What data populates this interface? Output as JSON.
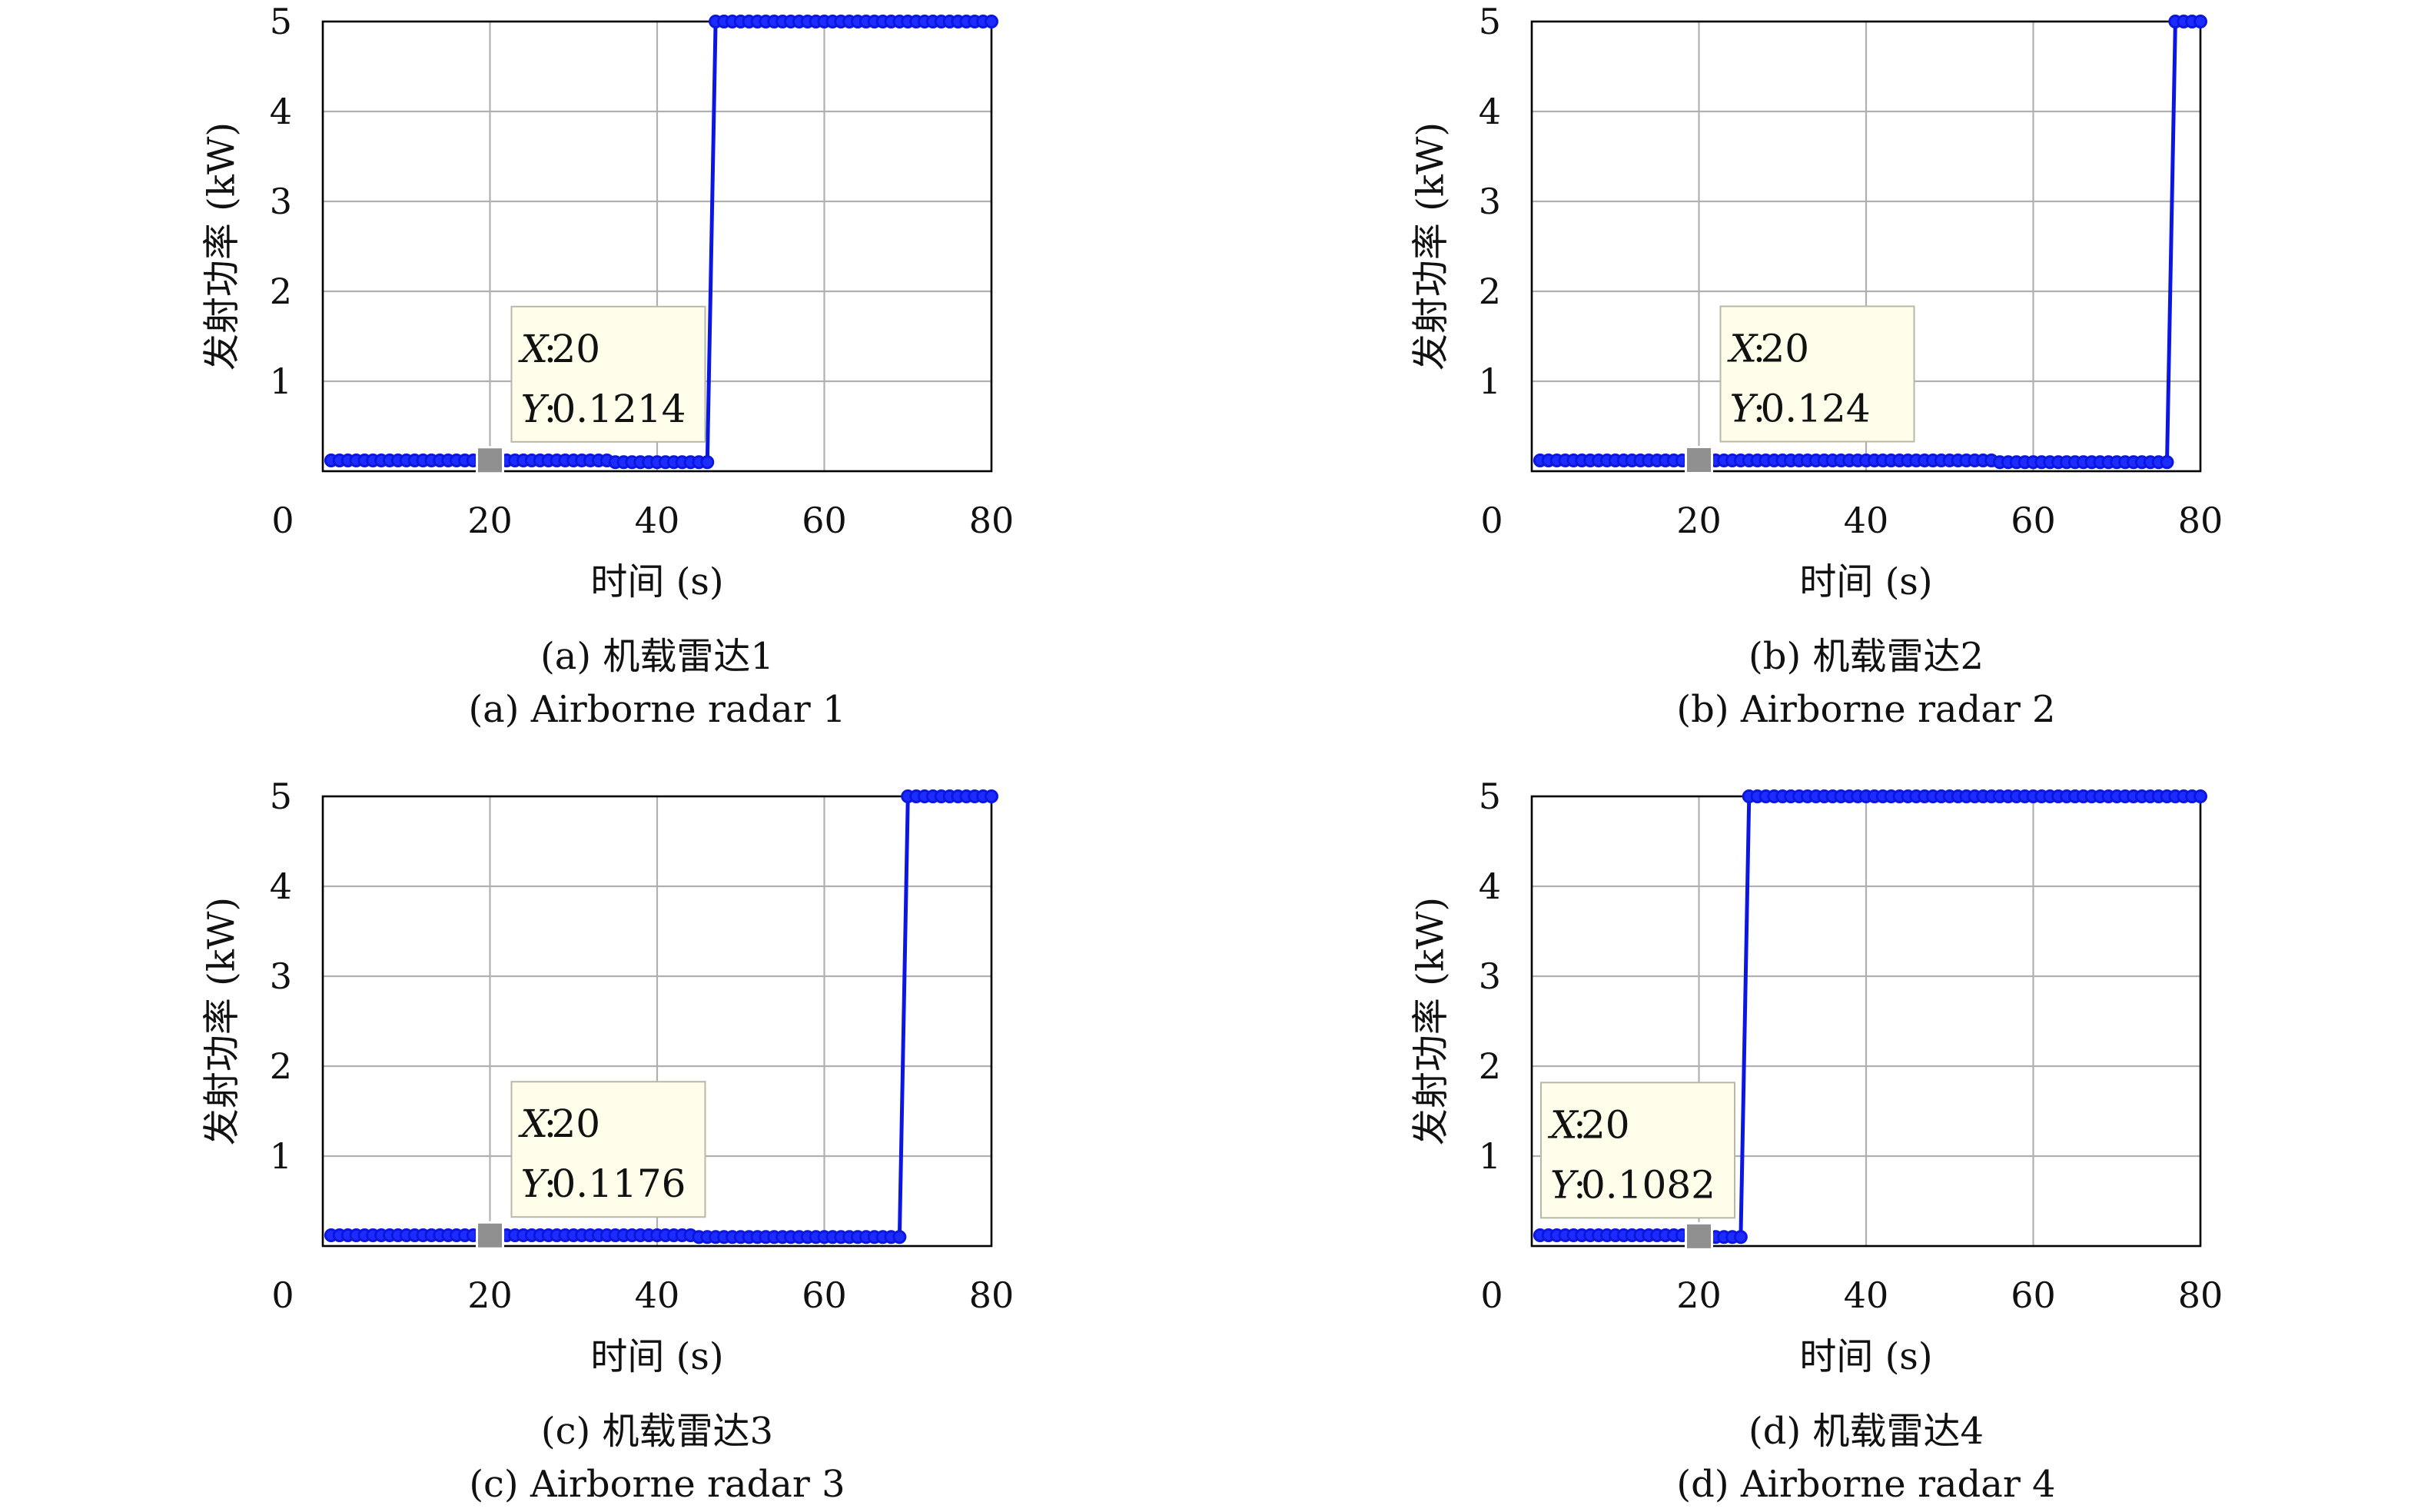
{
  "colors": {
    "series": "#0b17e0",
    "marker_fill": "#1c2cff",
    "grid": "#b0b0b0",
    "axes": "#000000",
    "datatip_fill": "#fefeea",
    "datatip_border": "#b8b8a6",
    "datatip_marker": "#909090"
  },
  "chart_data": [
    {
      "type": "line",
      "panel": "a",
      "caption_cn": "(a) 机载雷达1",
      "caption_en": "(a) Airborne radar 1",
      "xlabel": "时间 (s)",
      "ylabel": "发射功率 (kW)",
      "xlim": [
        0,
        80
      ],
      "ylim": [
        0,
        5
      ],
      "xticks": [
        "0",
        "20",
        "40",
        "60",
        "80"
      ],
      "yticks": [
        "1",
        "2",
        "3",
        "4",
        "5"
      ],
      "grid": true,
      "marker": "circle",
      "series": [
        {
          "x": [
            1,
            2,
            3,
            4,
            5,
            6,
            7,
            8,
            9,
            10,
            11,
            12,
            13,
            14,
            15,
            16,
            17,
            18,
            19,
            20,
            21,
            22,
            23,
            24,
            25,
            26,
            27,
            28,
            29,
            30,
            31,
            32,
            33,
            34,
            35,
            36,
            37,
            38,
            39,
            40,
            41,
            42,
            43,
            44,
            45,
            46,
            47,
            48,
            49,
            50,
            51,
            52,
            53,
            54,
            55,
            56,
            57,
            58,
            59,
            60,
            61,
            62,
            63,
            64,
            65,
            66,
            67,
            68,
            69,
            70,
            71,
            72,
            73,
            74,
            75,
            76,
            77,
            78,
            79,
            80
          ],
          "y": [
            0.12,
            0.12,
            0.12,
            0.12,
            0.12,
            0.12,
            0.12,
            0.12,
            0.12,
            0.12,
            0.12,
            0.12,
            0.12,
            0.12,
            0.12,
            0.12,
            0.12,
            0.12,
            0.12,
            0.1214,
            0.12,
            0.12,
            0.12,
            0.12,
            0.12,
            0.12,
            0.12,
            0.12,
            0.12,
            0.12,
            0.12,
            0.12,
            0.12,
            0.12,
            0.1,
            0.1,
            0.1,
            0.1,
            0.1,
            0.1,
            0.1,
            0.1,
            0.1,
            0.1,
            0.1,
            0.1,
            5,
            5,
            5,
            5,
            5,
            5,
            5,
            5,
            5,
            5,
            5,
            5,
            5,
            5,
            5,
            5,
            5,
            5,
            5,
            5,
            5,
            5,
            5,
            5,
            5,
            5,
            5,
            5,
            5,
            5,
            5,
            5,
            5,
            5
          ]
        }
      ],
      "datatip": {
        "x_key": "X",
        "x_value": "20",
        "y_key": "Y",
        "y_value": "0.1214",
        "at_x": 20,
        "at_y": 0.1214
      }
    },
    {
      "type": "line",
      "panel": "b",
      "caption_cn": "(b) 机载雷达2",
      "caption_en": "(b) Airborne radar 2",
      "xlabel": "时间 (s)",
      "ylabel": "发射功率 (kW)",
      "xlim": [
        0,
        80
      ],
      "ylim": [
        0,
        5
      ],
      "xticks": [
        "0",
        "20",
        "40",
        "60",
        "80"
      ],
      "yticks": [
        "1",
        "2",
        "3",
        "4",
        "5"
      ],
      "grid": true,
      "marker": "circle",
      "series": [
        {
          "x": [
            1,
            2,
            3,
            4,
            5,
            6,
            7,
            8,
            9,
            10,
            11,
            12,
            13,
            14,
            15,
            16,
            17,
            18,
            19,
            20,
            21,
            22,
            23,
            24,
            25,
            26,
            27,
            28,
            29,
            30,
            31,
            32,
            33,
            34,
            35,
            36,
            37,
            38,
            39,
            40,
            41,
            42,
            43,
            44,
            45,
            46,
            47,
            48,
            49,
            50,
            51,
            52,
            53,
            54,
            55,
            56,
            57,
            58,
            59,
            60,
            61,
            62,
            63,
            64,
            65,
            66,
            67,
            68,
            69,
            70,
            71,
            72,
            73,
            74,
            75,
            76,
            77,
            78,
            79,
            80
          ],
          "y": [
            0.12,
            0.12,
            0.12,
            0.12,
            0.12,
            0.12,
            0.12,
            0.12,
            0.12,
            0.12,
            0.12,
            0.12,
            0.12,
            0.12,
            0.12,
            0.12,
            0.12,
            0.12,
            0.12,
            0.124,
            0.12,
            0.12,
            0.12,
            0.12,
            0.12,
            0.12,
            0.12,
            0.12,
            0.12,
            0.12,
            0.12,
            0.12,
            0.12,
            0.12,
            0.12,
            0.12,
            0.12,
            0.12,
            0.12,
            0.12,
            0.12,
            0.12,
            0.12,
            0.12,
            0.12,
            0.12,
            0.12,
            0.12,
            0.12,
            0.12,
            0.12,
            0.12,
            0.12,
            0.12,
            0.12,
            0.1,
            0.1,
            0.1,
            0.1,
            0.1,
            0.1,
            0.1,
            0.1,
            0.1,
            0.1,
            0.1,
            0.1,
            0.1,
            0.1,
            0.1,
            0.1,
            0.1,
            0.1,
            0.1,
            0.1,
            0.1,
            5,
            5,
            5,
            5
          ]
        }
      ],
      "datatip": {
        "x_key": "X",
        "x_value": "20",
        "y_key": "Y",
        "y_value": "0.124",
        "at_x": 20,
        "at_y": 0.124
      }
    },
    {
      "type": "line",
      "panel": "c",
      "caption_cn": "(c) 机载雷达3",
      "caption_en": "(c) Airborne radar 3",
      "xlabel": "时间 (s)",
      "ylabel": "发射功率 (kW)",
      "xlim": [
        0,
        80
      ],
      "ylim": [
        0,
        5
      ],
      "xticks": [
        "0",
        "20",
        "40",
        "60",
        "80"
      ],
      "yticks": [
        "1",
        "2",
        "3",
        "4",
        "5"
      ],
      "grid": true,
      "marker": "circle",
      "series": [
        {
          "x": [
            1,
            2,
            3,
            4,
            5,
            6,
            7,
            8,
            9,
            10,
            11,
            12,
            13,
            14,
            15,
            16,
            17,
            18,
            19,
            20,
            21,
            22,
            23,
            24,
            25,
            26,
            27,
            28,
            29,
            30,
            31,
            32,
            33,
            34,
            35,
            36,
            37,
            38,
            39,
            40,
            41,
            42,
            43,
            44,
            45,
            46,
            47,
            48,
            49,
            50,
            51,
            52,
            53,
            54,
            55,
            56,
            57,
            58,
            59,
            60,
            61,
            62,
            63,
            64,
            65,
            66,
            67,
            68,
            69,
            70,
            71,
            72,
            73,
            74,
            75,
            76,
            77,
            78,
            79,
            80
          ],
          "y": [
            0.12,
            0.12,
            0.12,
            0.12,
            0.12,
            0.12,
            0.12,
            0.12,
            0.12,
            0.12,
            0.12,
            0.12,
            0.12,
            0.12,
            0.12,
            0.12,
            0.12,
            0.12,
            0.12,
            0.1176,
            0.12,
            0.12,
            0.12,
            0.12,
            0.12,
            0.12,
            0.12,
            0.12,
            0.12,
            0.12,
            0.12,
            0.12,
            0.12,
            0.12,
            0.12,
            0.12,
            0.12,
            0.12,
            0.12,
            0.12,
            0.12,
            0.12,
            0.12,
            0.12,
            0.1,
            0.1,
            0.1,
            0.1,
            0.1,
            0.1,
            0.1,
            0.1,
            0.1,
            0.1,
            0.1,
            0.1,
            0.1,
            0.1,
            0.1,
            0.1,
            0.1,
            0.1,
            0.1,
            0.1,
            0.1,
            0.1,
            0.1,
            0.1,
            0.1,
            5,
            5,
            5,
            5,
            5,
            5,
            5,
            5,
            5,
            5,
            5
          ]
        }
      ],
      "datatip": {
        "x_key": "X",
        "x_value": "20",
        "y_key": "Y",
        "y_value": "0.1176",
        "at_x": 20,
        "at_y": 0.1176
      }
    },
    {
      "type": "line",
      "panel": "d",
      "caption_cn": "(d) 机载雷达4",
      "caption_en": "(d) Airborne radar 4",
      "xlabel": "时间 (s)",
      "ylabel": "发射功率 (kW)",
      "xlim": [
        0,
        80
      ],
      "ylim": [
        0,
        5
      ],
      "xticks": [
        "0",
        "20",
        "40",
        "60",
        "80"
      ],
      "yticks": [
        "1",
        "2",
        "3",
        "4",
        "5"
      ],
      "grid": true,
      "marker": "circle",
      "series": [
        {
          "x": [
            1,
            2,
            3,
            4,
            5,
            6,
            7,
            8,
            9,
            10,
            11,
            12,
            13,
            14,
            15,
            16,
            17,
            18,
            19,
            20,
            21,
            22,
            23,
            24,
            25,
            26,
            27,
            28,
            29,
            30,
            31,
            32,
            33,
            34,
            35,
            36,
            37,
            38,
            39,
            40,
            41,
            42,
            43,
            44,
            45,
            46,
            47,
            48,
            49,
            50,
            51,
            52,
            53,
            54,
            55,
            56,
            57,
            58,
            59,
            60,
            61,
            62,
            63,
            64,
            65,
            66,
            67,
            68,
            69,
            70,
            71,
            72,
            73,
            74,
            75,
            76,
            77,
            78,
            79,
            80
          ],
          "y": [
            0.12,
            0.12,
            0.12,
            0.12,
            0.12,
            0.12,
            0.12,
            0.12,
            0.12,
            0.12,
            0.12,
            0.12,
            0.12,
            0.12,
            0.12,
            0.12,
            0.12,
            0.12,
            0.12,
            0.1082,
            0.1,
            0.1,
            0.1,
            0.1,
            0.1,
            5,
            5,
            5,
            5,
            5,
            5,
            5,
            5,
            5,
            5,
            5,
            5,
            5,
            5,
            5,
            5,
            5,
            5,
            5,
            5,
            5,
            5,
            5,
            5,
            5,
            5,
            5,
            5,
            5,
            5,
            5,
            5,
            5,
            5,
            5,
            5,
            5,
            5,
            5,
            5,
            5,
            5,
            5,
            5,
            5,
            5,
            5,
            5,
            5,
            5,
            5,
            5,
            5,
            5,
            5
          ]
        }
      ],
      "datatip": {
        "x_key": "X",
        "x_value": "20",
        "y_key": "Y",
        "y_value": "0.1082",
        "at_x": 20,
        "at_y": 0.1082,
        "placement": "left"
      }
    }
  ]
}
